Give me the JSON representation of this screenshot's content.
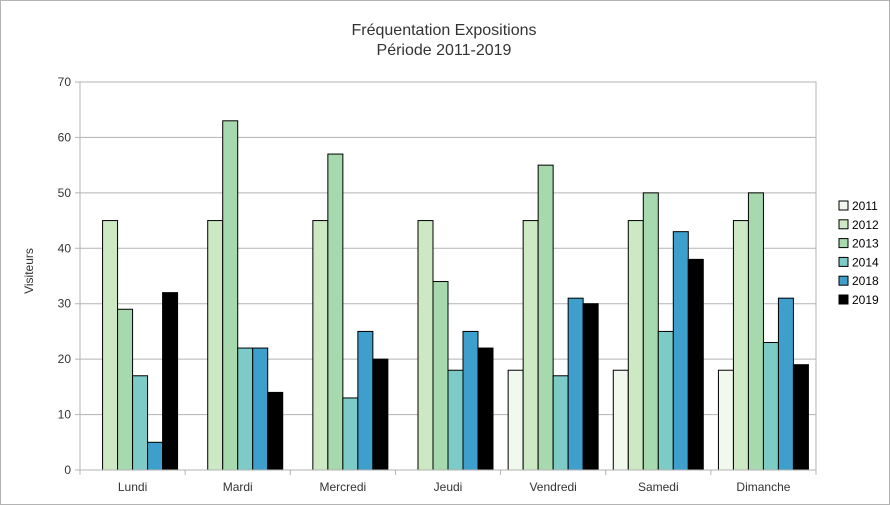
{
  "chart_data": {
    "type": "bar",
    "title": "Fréquentation Expositions",
    "subtitle": "Période 2011-2019",
    "xlabel": "",
    "ylabel": "Visiteurs",
    "ylim": [
      0,
      70
    ],
    "ytick_step": 10,
    "grid": true,
    "legend_position": "right",
    "categories": [
      "Lundi",
      "Mardi",
      "Mercredi",
      "Jeudi",
      "Vendredi",
      "Samedi",
      "Dimanche"
    ],
    "series": [
      {
        "name": "2011",
        "color": "#f1f8ee",
        "values": [
          0,
          0,
          0,
          0,
          18,
          18,
          18
        ]
      },
      {
        "name": "2012",
        "color": "#cde9c4",
        "values": [
          45,
          45,
          45,
          45,
          45,
          45,
          45
        ]
      },
      {
        "name": "2013",
        "color": "#a7d9ae",
        "values": [
          29,
          63,
          57,
          34,
          55,
          50,
          50
        ]
      },
      {
        "name": "2014",
        "color": "#7ccbc6",
        "values": [
          17,
          22,
          13,
          18,
          17,
          25,
          23
        ]
      },
      {
        "name": "2018",
        "color": "#3f9fcc",
        "values": [
          5,
          22,
          25,
          25,
          31,
          43,
          31
        ]
      },
      {
        "name": "2019",
        "color": "#000000",
        "values": [
          32,
          14,
          20,
          22,
          30,
          38,
          19
        ]
      }
    ]
  }
}
